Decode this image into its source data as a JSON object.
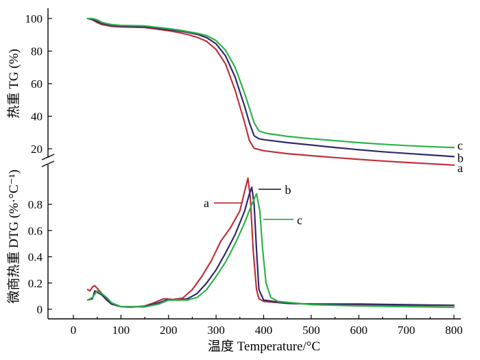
{
  "chart_data": [
    {
      "type": "line",
      "panel": "TG",
      "xlabel": "温度 Temperature/°C",
      "ylabel": "热重 TG (%)",
      "xlim": [
        0,
        800
      ],
      "ylim": [
        10,
        100
      ],
      "x_ticks": [
        0,
        100,
        200,
        300,
        400,
        500,
        600,
        700,
        800
      ],
      "y_ticks": [
        20,
        40,
        60,
        80,
        100
      ],
      "grid": false,
      "series": [
        {
          "name": "a",
          "color": "#c0303a",
          "points": [
            [
              30,
              100
            ],
            [
              40,
              99.2
            ],
            [
              50,
              97.5
            ],
            [
              60,
              96.3
            ],
            [
              80,
              95.2
            ],
            [
              100,
              94.8
            ],
            [
              150,
              94.5
            ],
            [
              200,
              92.5
            ],
            [
              220,
              91.5
            ],
            [
              240,
              90.2
            ],
            [
              260,
              88.5
            ],
            [
              280,
              86
            ],
            [
              300,
              81
            ],
            [
              320,
              72
            ],
            [
              340,
              56
            ],
            [
              360,
              36
            ],
            [
              370,
              25
            ],
            [
              380,
              20.3
            ],
            [
              400,
              18.8
            ],
            [
              450,
              17
            ],
            [
              500,
              15.8
            ],
            [
              550,
              14.6
            ],
            [
              600,
              13.5
            ],
            [
              650,
              12.5
            ],
            [
              700,
              11.6
            ],
            [
              750,
              10.8
            ],
            [
              800,
              10
            ]
          ]
        },
        {
          "name": "b",
          "color": "#2e2a6b",
          "points": [
            [
              30,
              100
            ],
            [
              40,
              99.5
            ],
            [
              50,
              98.2
            ],
            [
              60,
              97
            ],
            [
              80,
              95.8
            ],
            [
              100,
              95.3
            ],
            [
              150,
              95
            ],
            [
              200,
              93.2
            ],
            [
              220,
              92.5
            ],
            [
              240,
              91.5
            ],
            [
              260,
              90.3
            ],
            [
              280,
              88.3
            ],
            [
              300,
              84.5
            ],
            [
              320,
              77
            ],
            [
              340,
              64
            ],
            [
              360,
              46
            ],
            [
              370,
              36
            ],
            [
              380,
              28
            ],
            [
              390,
              26.2
            ],
            [
              400,
              25.6
            ],
            [
              450,
              23.8
            ],
            [
              500,
              22.3
            ],
            [
              550,
              20.8
            ],
            [
              600,
              19.4
            ],
            [
              650,
              18.2
            ],
            [
              700,
              17.2
            ],
            [
              750,
              16.2
            ],
            [
              800,
              15.2
            ]
          ]
        },
        {
          "name": "c",
          "color": "#2db34a",
          "points": [
            [
              30,
              100
            ],
            [
              40,
              100
            ],
            [
              50,
              99.2
            ],
            [
              60,
              97.6
            ],
            [
              80,
              96.3
            ],
            [
              100,
              95.8
            ],
            [
              150,
              95.5
            ],
            [
              200,
              93.8
            ],
            [
              220,
              93
            ],
            [
              240,
              92
            ],
            [
              260,
              91
            ],
            [
              280,
              89.5
            ],
            [
              300,
              86.5
            ],
            [
              320,
              80.5
            ],
            [
              340,
              70
            ],
            [
              360,
              54
            ],
            [
              380,
              36
            ],
            [
              390,
              31
            ],
            [
              400,
              30
            ],
            [
              410,
              29.3
            ],
            [
              450,
              27.6
            ],
            [
              500,
              26.2
            ],
            [
              550,
              25
            ],
            [
              600,
              23.8
            ],
            [
              650,
              22.8
            ],
            [
              700,
              22
            ],
            [
              750,
              21.3
            ],
            [
              800,
              20.8
            ]
          ]
        }
      ]
    },
    {
      "type": "line",
      "panel": "DTG",
      "xlabel": "温度 Temperature/°C",
      "ylabel": "微商热重 DTG (%·°C⁻¹)",
      "xlim": [
        0,
        800
      ],
      "ylim": [
        0,
        1.0
      ],
      "x_ticks": [
        0,
        100,
        200,
        300,
        400,
        500,
        600,
        700,
        800
      ],
      "y_ticks": [
        0,
        0.2,
        0.4,
        0.6,
        0.8
      ],
      "grid": false,
      "series": [
        {
          "name": "a",
          "color": "#c0303a",
          "points": [
            [
              30,
              0.15
            ],
            [
              35,
              0.14
            ],
            [
              40,
              0.17
            ],
            [
              45,
              0.18
            ],
            [
              50,
              0.16
            ],
            [
              60,
              0.12
            ],
            [
              70,
              0.08
            ],
            [
              80,
              0.05
            ],
            [
              90,
              0.03
            ],
            [
              100,
              0.02
            ],
            [
              120,
              0.015
            ],
            [
              150,
              0.025
            ],
            [
              170,
              0.05
            ],
            [
              190,
              0.08
            ],
            [
              210,
              0.075
            ],
            [
              230,
              0.085
            ],
            [
              250,
              0.15
            ],
            [
              270,
              0.25
            ],
            [
              290,
              0.37
            ],
            [
              310,
              0.52
            ],
            [
              330,
              0.62
            ],
            [
              350,
              0.75
            ],
            [
              360,
              0.9
            ],
            [
              367,
              1.0
            ],
            [
              372,
              0.85
            ],
            [
              378,
              0.45
            ],
            [
              385,
              0.15
            ],
            [
              390,
              0.08
            ],
            [
              400,
              0.06
            ],
            [
              450,
              0.045
            ],
            [
              500,
              0.04
            ],
            [
              600,
              0.035
            ],
            [
              700,
              0.03
            ],
            [
              800,
              0.03
            ]
          ]
        },
        {
          "name": "b",
          "color": "#2e2a6b",
          "points": [
            [
              30,
              0.07
            ],
            [
              40,
              0.08
            ],
            [
              45,
              0.14
            ],
            [
              50,
              0.13
            ],
            [
              60,
              0.11
            ],
            [
              70,
              0.07
            ],
            [
              80,
              0.04
            ],
            [
              100,
              0.02
            ],
            [
              150,
              0.02
            ],
            [
              180,
              0.05
            ],
            [
              200,
              0.075
            ],
            [
              220,
              0.07
            ],
            [
              240,
              0.08
            ],
            [
              260,
              0.12
            ],
            [
              280,
              0.2
            ],
            [
              300,
              0.3
            ],
            [
              320,
              0.43
            ],
            [
              340,
              0.57
            ],
            [
              360,
              0.75
            ],
            [
              370,
              0.88
            ],
            [
              375,
              0.93
            ],
            [
              380,
              0.8
            ],
            [
              385,
              0.45
            ],
            [
              390,
              0.15
            ],
            [
              400,
              0.07
            ],
            [
              450,
              0.045
            ],
            [
              500,
              0.04
            ],
            [
              600,
              0.04
            ],
            [
              700,
              0.035
            ],
            [
              800,
              0.03
            ]
          ]
        },
        {
          "name": "c",
          "color": "#2db34a",
          "points": [
            [
              30,
              0.07
            ],
            [
              40,
              0.09
            ],
            [
              50,
              0.14
            ],
            [
              60,
              0.12
            ],
            [
              70,
              0.09
            ],
            [
              80,
              0.05
            ],
            [
              100,
              0.02
            ],
            [
              150,
              0.018
            ],
            [
              180,
              0.04
            ],
            [
              200,
              0.07
            ],
            [
              220,
              0.07
            ],
            [
              240,
              0.07
            ],
            [
              260,
              0.09
            ],
            [
              280,
              0.15
            ],
            [
              300,
              0.25
            ],
            [
              320,
              0.36
            ],
            [
              340,
              0.5
            ],
            [
              360,
              0.66
            ],
            [
              375,
              0.8
            ],
            [
              385,
              0.88
            ],
            [
              392,
              0.75
            ],
            [
              398,
              0.45
            ],
            [
              405,
              0.2
            ],
            [
              415,
              0.09
            ],
            [
              430,
              0.06
            ],
            [
              500,
              0.035
            ],
            [
              600,
              0.025
            ],
            [
              700,
              0.02
            ],
            [
              800,
              0.015
            ]
          ]
        }
      ]
    }
  ],
  "annotations": {
    "tg_labels": [
      "a",
      "b",
      "c"
    ],
    "dtg_labels": [
      "a",
      "b",
      "c"
    ]
  }
}
